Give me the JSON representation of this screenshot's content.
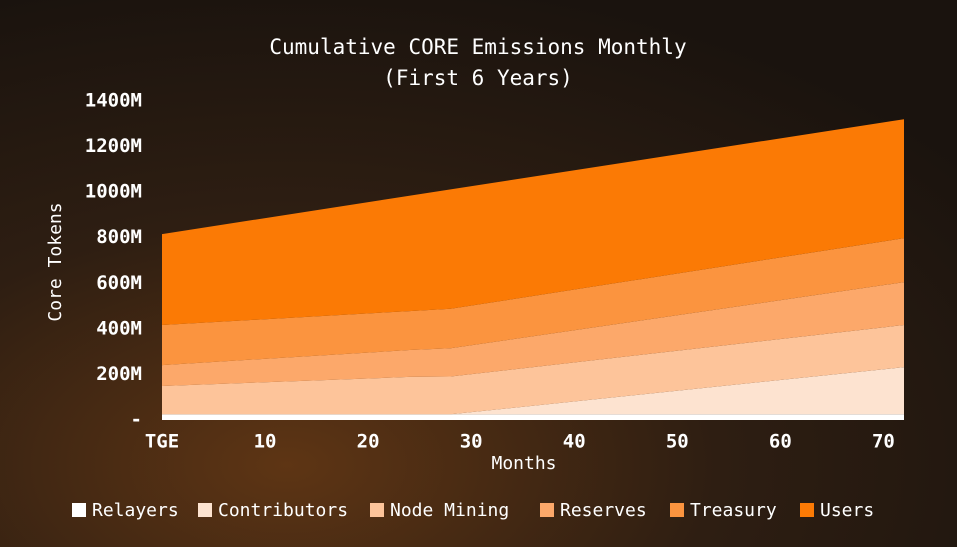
{
  "chart_data": {
    "type": "stacked_area",
    "title": "Cumulative CORE Emissions Monthly",
    "subtitle": "(First 6 Years)",
    "x_label": "Months",
    "y_label": "Core Tokens",
    "x": [
      0,
      24,
      28,
      72
    ],
    "xlim": [
      0,
      72
    ],
    "xticks": [
      {
        "value": 0,
        "label": "TGE"
      },
      10,
      20,
      30,
      40,
      50,
      60,
      70
    ],
    "ylim": [
      0,
      1400
    ],
    "yticks": [
      {
        "value": 0,
        "label": "-"
      },
      {
        "value": 200,
        "label": "200M"
      },
      {
        "value": 400,
        "label": "400M"
      },
      {
        "value": 600,
        "label": "600M"
      },
      {
        "value": 800,
        "label": "800M"
      },
      {
        "value": 1000,
        "label": "1000M"
      },
      {
        "value": 1200,
        "label": "1200M"
      },
      {
        "value": 1400,
        "label": "1400M"
      }
    ],
    "series": [
      {
        "name": "Relayers",
        "color": "#ffffff",
        "values": [
          25,
          25,
          25,
          25
        ]
      },
      {
        "name": "Contributors",
        "color": "#fde3d0",
        "values": [
          0,
          0,
          0,
          207
        ]
      },
      {
        "name": "Node Mining",
        "color": "#fdc49a",
        "values": [
          124,
          164,
          166,
          185
        ]
      },
      {
        "name": "Reserves",
        "color": "#fca86a",
        "values": [
          92,
          118,
          124,
          188
        ]
      },
      {
        "name": "Treasury",
        "color": "#fb943f",
        "values": [
          176,
          171,
          173,
          193
        ]
      },
      {
        "name": "Users",
        "color": "#fb7a05",
        "values": [
          399,
          506,
          524,
          522
        ]
      }
    ]
  }
}
